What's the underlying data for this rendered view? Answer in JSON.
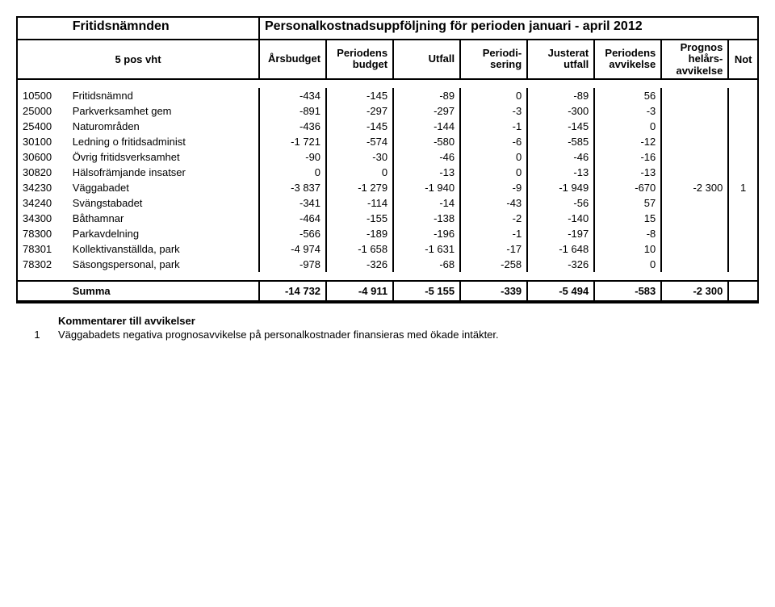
{
  "header": {
    "org": "Fritidsnämnden",
    "title": "Personalkostnadsuppföljning för perioden januari - april 2012",
    "leftlabel": "5 pos vht",
    "cols": {
      "arsbudget": "Årsbudget",
      "periodens_budget_l1": "Periodens",
      "periodens_budget_l2": "budget",
      "utfall": "Utfall",
      "periodisering_l1": "Periodi-",
      "periodisering_l2": "sering",
      "justerat_l1": "Justerat",
      "justerat_l2": "utfall",
      "avvikelse_l1": "Periodens",
      "avvikelse_l2": "avvikelse",
      "prognos_l1": "Prognos",
      "prognos_l2": "helårs-",
      "prognos_l3": "avvikelse",
      "not": "Not"
    }
  },
  "rows": [
    {
      "code": "10500",
      "name": "Fritidsnämnd",
      "c": [
        "-434",
        "-145",
        "-89",
        "0",
        "-89",
        "56",
        "",
        ""
      ]
    },
    {
      "code": "25000",
      "name": "Parkverksamhet gem",
      "c": [
        "-891",
        "-297",
        "-297",
        "-3",
        "-300",
        "-3",
        "",
        ""
      ]
    },
    {
      "code": "25400",
      "name": "Naturområden",
      "c": [
        "-436",
        "-145",
        "-144",
        "-1",
        "-145",
        "0",
        "",
        ""
      ]
    },
    {
      "code": "30100",
      "name": "Ledning o fritidsadminist",
      "c": [
        "-1 721",
        "-574",
        "-580",
        "-6",
        "-585",
        "-12",
        "",
        ""
      ]
    },
    {
      "code": "30600",
      "name": "Övrig fritidsverksamhet",
      "c": [
        "-90",
        "-30",
        "-46",
        "0",
        "-46",
        "-16",
        "",
        ""
      ]
    },
    {
      "code": "30820",
      "name": "Hälsofrämjande insatser",
      "c": [
        "0",
        "0",
        "-13",
        "0",
        "-13",
        "-13",
        "",
        ""
      ]
    },
    {
      "code": "34230",
      "name": "Väggabadet",
      "c": [
        "-3 837",
        "-1 279",
        "-1 940",
        "-9",
        "-1 949",
        "-670",
        "-2 300",
        "1"
      ]
    },
    {
      "code": "34240",
      "name": "Svängstabadet",
      "c": [
        "-341",
        "-114",
        "-14",
        "-43",
        "-56",
        "57",
        "",
        ""
      ]
    },
    {
      "code": "34300",
      "name": "Båthamnar",
      "c": [
        "-464",
        "-155",
        "-138",
        "-2",
        "-140",
        "15",
        "",
        ""
      ]
    },
    {
      "code": "78300",
      "name": "Parkavdelning",
      "c": [
        "-566",
        "-189",
        "-196",
        "-1",
        "-197",
        "-8",
        "",
        ""
      ]
    },
    {
      "code": "78301",
      "name": "Kollektivanställda, park",
      "c": [
        "-4 974",
        "-1 658",
        "-1 631",
        "-17",
        "-1 648",
        "10",
        "",
        ""
      ]
    },
    {
      "code": "78302",
      "name": "Säsongspersonal, park",
      "c": [
        "-978",
        "-326",
        "-68",
        "-258",
        "-326",
        "0",
        "",
        ""
      ]
    }
  ],
  "sum": {
    "label": "Summa",
    "c": [
      "-14 732",
      "-4 911",
      "-5 155",
      "-339",
      "-5 494",
      "-583",
      "-2 300",
      ""
    ]
  },
  "footer": {
    "title": "Kommentarer till avvikelser",
    "note_num": "1",
    "note_text": "Väggabadets negativa prognosavvikelse på personalkostnader finansieras med ökade intäkter."
  },
  "style": {
    "bg": "#ffffff",
    "border": "#000000",
    "font": "Arial",
    "fontsize_body": 13,
    "fontsize_title": 16
  }
}
